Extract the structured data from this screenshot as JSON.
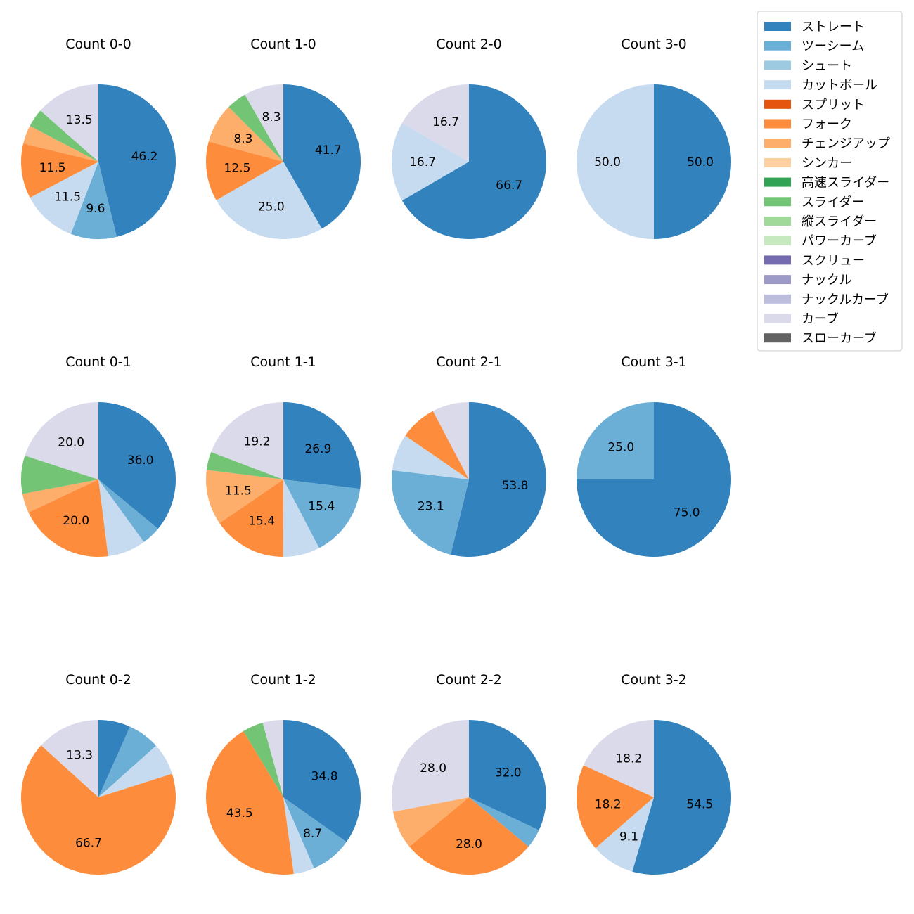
{
  "colors": {
    "ストレート": "#3182bd",
    "ツーシーム": "#6baed6",
    "シュート": "#9ecae1",
    "カットボール": "#c6dbef",
    "スプリット": "#e6550d",
    "フォーク": "#fd8d3c",
    "チェンジアップ": "#fdae6b",
    "シンカー": "#fdd0a2",
    "高速スライダー": "#31a354",
    "スライダー": "#74c476",
    "縦スライダー": "#a1d99b",
    "パワーカーブ": "#c7e9c0",
    "スクリュー": "#756bb1",
    "ナックル": "#9e9ac8",
    "ナックルカーブ": "#bcbddc",
    "カーブ": "#dadaeb",
    "スローカーブ": "#636363"
  },
  "chart_data": {
    "type": "pie",
    "legend": {
      "position": "top-right",
      "entries": [
        "ストレート",
        "ツーシーム",
        "シュート",
        "カットボール",
        "スプリット",
        "フォーク",
        "チェンジアップ",
        "シンカー",
        "高速スライダー",
        "スライダー",
        "縦スライダー",
        "パワーカーブ",
        "スクリュー",
        "ナックル",
        "ナックルカーブ",
        "カーブ",
        "スローカーブ"
      ]
    },
    "charts": [
      {
        "title": "Count 0-0",
        "slices": [
          {
            "name": "ストレート",
            "value": 46.2,
            "label": "46.2"
          },
          {
            "name": "ツーシーム",
            "value": 9.6,
            "label": "9.6"
          },
          {
            "name": "カットボール",
            "value": 11.5,
            "label": "11.5"
          },
          {
            "name": "フォーク",
            "value": 11.5,
            "label": "11.5"
          },
          {
            "name": "チェンジアップ",
            "value": 3.85,
            "label": ""
          },
          {
            "name": "スライダー",
            "value": 3.85,
            "label": ""
          },
          {
            "name": "カーブ",
            "value": 13.5,
            "label": "13.5"
          }
        ]
      },
      {
        "title": "Count 1-0",
        "slices": [
          {
            "name": "ストレート",
            "value": 41.7,
            "label": "41.7"
          },
          {
            "name": "カットボール",
            "value": 25.0,
            "label": "25.0"
          },
          {
            "name": "フォーク",
            "value": 12.5,
            "label": "12.5"
          },
          {
            "name": "チェンジアップ",
            "value": 8.3,
            "label": "8.3"
          },
          {
            "name": "スライダー",
            "value": 4.2,
            "label": ""
          },
          {
            "name": "カーブ",
            "value": 8.3,
            "label": "8.3"
          }
        ]
      },
      {
        "title": "Count 2-0",
        "slices": [
          {
            "name": "ストレート",
            "value": 66.7,
            "label": "66.7"
          },
          {
            "name": "カットボール",
            "value": 16.7,
            "label": "16.7"
          },
          {
            "name": "カーブ",
            "value": 16.7,
            "label": "16.7"
          }
        ]
      },
      {
        "title": "Count 3-0",
        "slices": [
          {
            "name": "ストレート",
            "value": 50.0,
            "label": "50.0"
          },
          {
            "name": "カットボール",
            "value": 50.0,
            "label": "50.0"
          }
        ]
      },
      {
        "title": "Count 0-1",
        "slices": [
          {
            "name": "ストレート",
            "value": 36.0,
            "label": "36.0"
          },
          {
            "name": "ツーシーム",
            "value": 4.0,
            "label": ""
          },
          {
            "name": "カットボール",
            "value": 8.0,
            "label": ""
          },
          {
            "name": "フォーク",
            "value": 20.0,
            "label": "20.0"
          },
          {
            "name": "チェンジアップ",
            "value": 4.0,
            "label": ""
          },
          {
            "name": "スライダー",
            "value": 8.0,
            "label": ""
          },
          {
            "name": "カーブ",
            "value": 20.0,
            "label": "20.0"
          }
        ]
      },
      {
        "title": "Count 1-1",
        "slices": [
          {
            "name": "ストレート",
            "value": 26.9,
            "label": "26.9"
          },
          {
            "name": "ツーシーム",
            "value": 15.4,
            "label": "15.4"
          },
          {
            "name": "カットボール",
            "value": 7.7,
            "label": ""
          },
          {
            "name": "フォーク",
            "value": 15.4,
            "label": "15.4"
          },
          {
            "name": "チェンジアップ",
            "value": 11.5,
            "label": "11.5"
          },
          {
            "name": "スライダー",
            "value": 3.8,
            "label": ""
          },
          {
            "name": "カーブ",
            "value": 19.2,
            "label": "19.2"
          }
        ]
      },
      {
        "title": "Count 2-1",
        "slices": [
          {
            "name": "ストレート",
            "value": 53.8,
            "label": "53.8"
          },
          {
            "name": "ツーシーム",
            "value": 23.1,
            "label": "23.1"
          },
          {
            "name": "カットボール",
            "value": 7.7,
            "label": ""
          },
          {
            "name": "フォーク",
            "value": 7.7,
            "label": ""
          },
          {
            "name": "カーブ",
            "value": 7.7,
            "label": ""
          }
        ]
      },
      {
        "title": "Count 3-1",
        "slices": [
          {
            "name": "ストレート",
            "value": 75.0,
            "label": "75.0"
          },
          {
            "name": "ツーシーム",
            "value": 25.0,
            "label": "25.0"
          }
        ]
      },
      {
        "title": "Count 0-2",
        "slices": [
          {
            "name": "ストレート",
            "value": 6.7,
            "label": ""
          },
          {
            "name": "ツーシーム",
            "value": 6.7,
            "label": ""
          },
          {
            "name": "カットボール",
            "value": 6.7,
            "label": ""
          },
          {
            "name": "フォーク",
            "value": 66.7,
            "label": "66.7"
          },
          {
            "name": "カーブ",
            "value": 13.3,
            "label": "13.3"
          }
        ]
      },
      {
        "title": "Count 1-2",
        "slices": [
          {
            "name": "ストレート",
            "value": 34.8,
            "label": "34.8"
          },
          {
            "name": "ツーシーム",
            "value": 8.7,
            "label": "8.7"
          },
          {
            "name": "カットボール",
            "value": 4.35,
            "label": ""
          },
          {
            "name": "フォーク",
            "value": 43.5,
            "label": "43.5"
          },
          {
            "name": "スライダー",
            "value": 4.35,
            "label": ""
          },
          {
            "name": "カーブ",
            "value": 4.3,
            "label": ""
          }
        ]
      },
      {
        "title": "Count 2-2",
        "slices": [
          {
            "name": "ストレート",
            "value": 32.0,
            "label": "32.0"
          },
          {
            "name": "ツーシーム",
            "value": 4.0,
            "label": ""
          },
          {
            "name": "フォーク",
            "value": 28.0,
            "label": "28.0"
          },
          {
            "name": "チェンジアップ",
            "value": 8.0,
            "label": ""
          },
          {
            "name": "カーブ",
            "value": 28.0,
            "label": "28.0"
          }
        ]
      },
      {
        "title": "Count 3-2",
        "slices": [
          {
            "name": "ストレート",
            "value": 54.5,
            "label": "54.5"
          },
          {
            "name": "カットボール",
            "value": 9.1,
            "label": "9.1"
          },
          {
            "name": "フォーク",
            "value": 18.2,
            "label": "18.2"
          },
          {
            "name": "カーブ",
            "value": 18.2,
            "label": "18.2"
          }
        ]
      }
    ]
  }
}
